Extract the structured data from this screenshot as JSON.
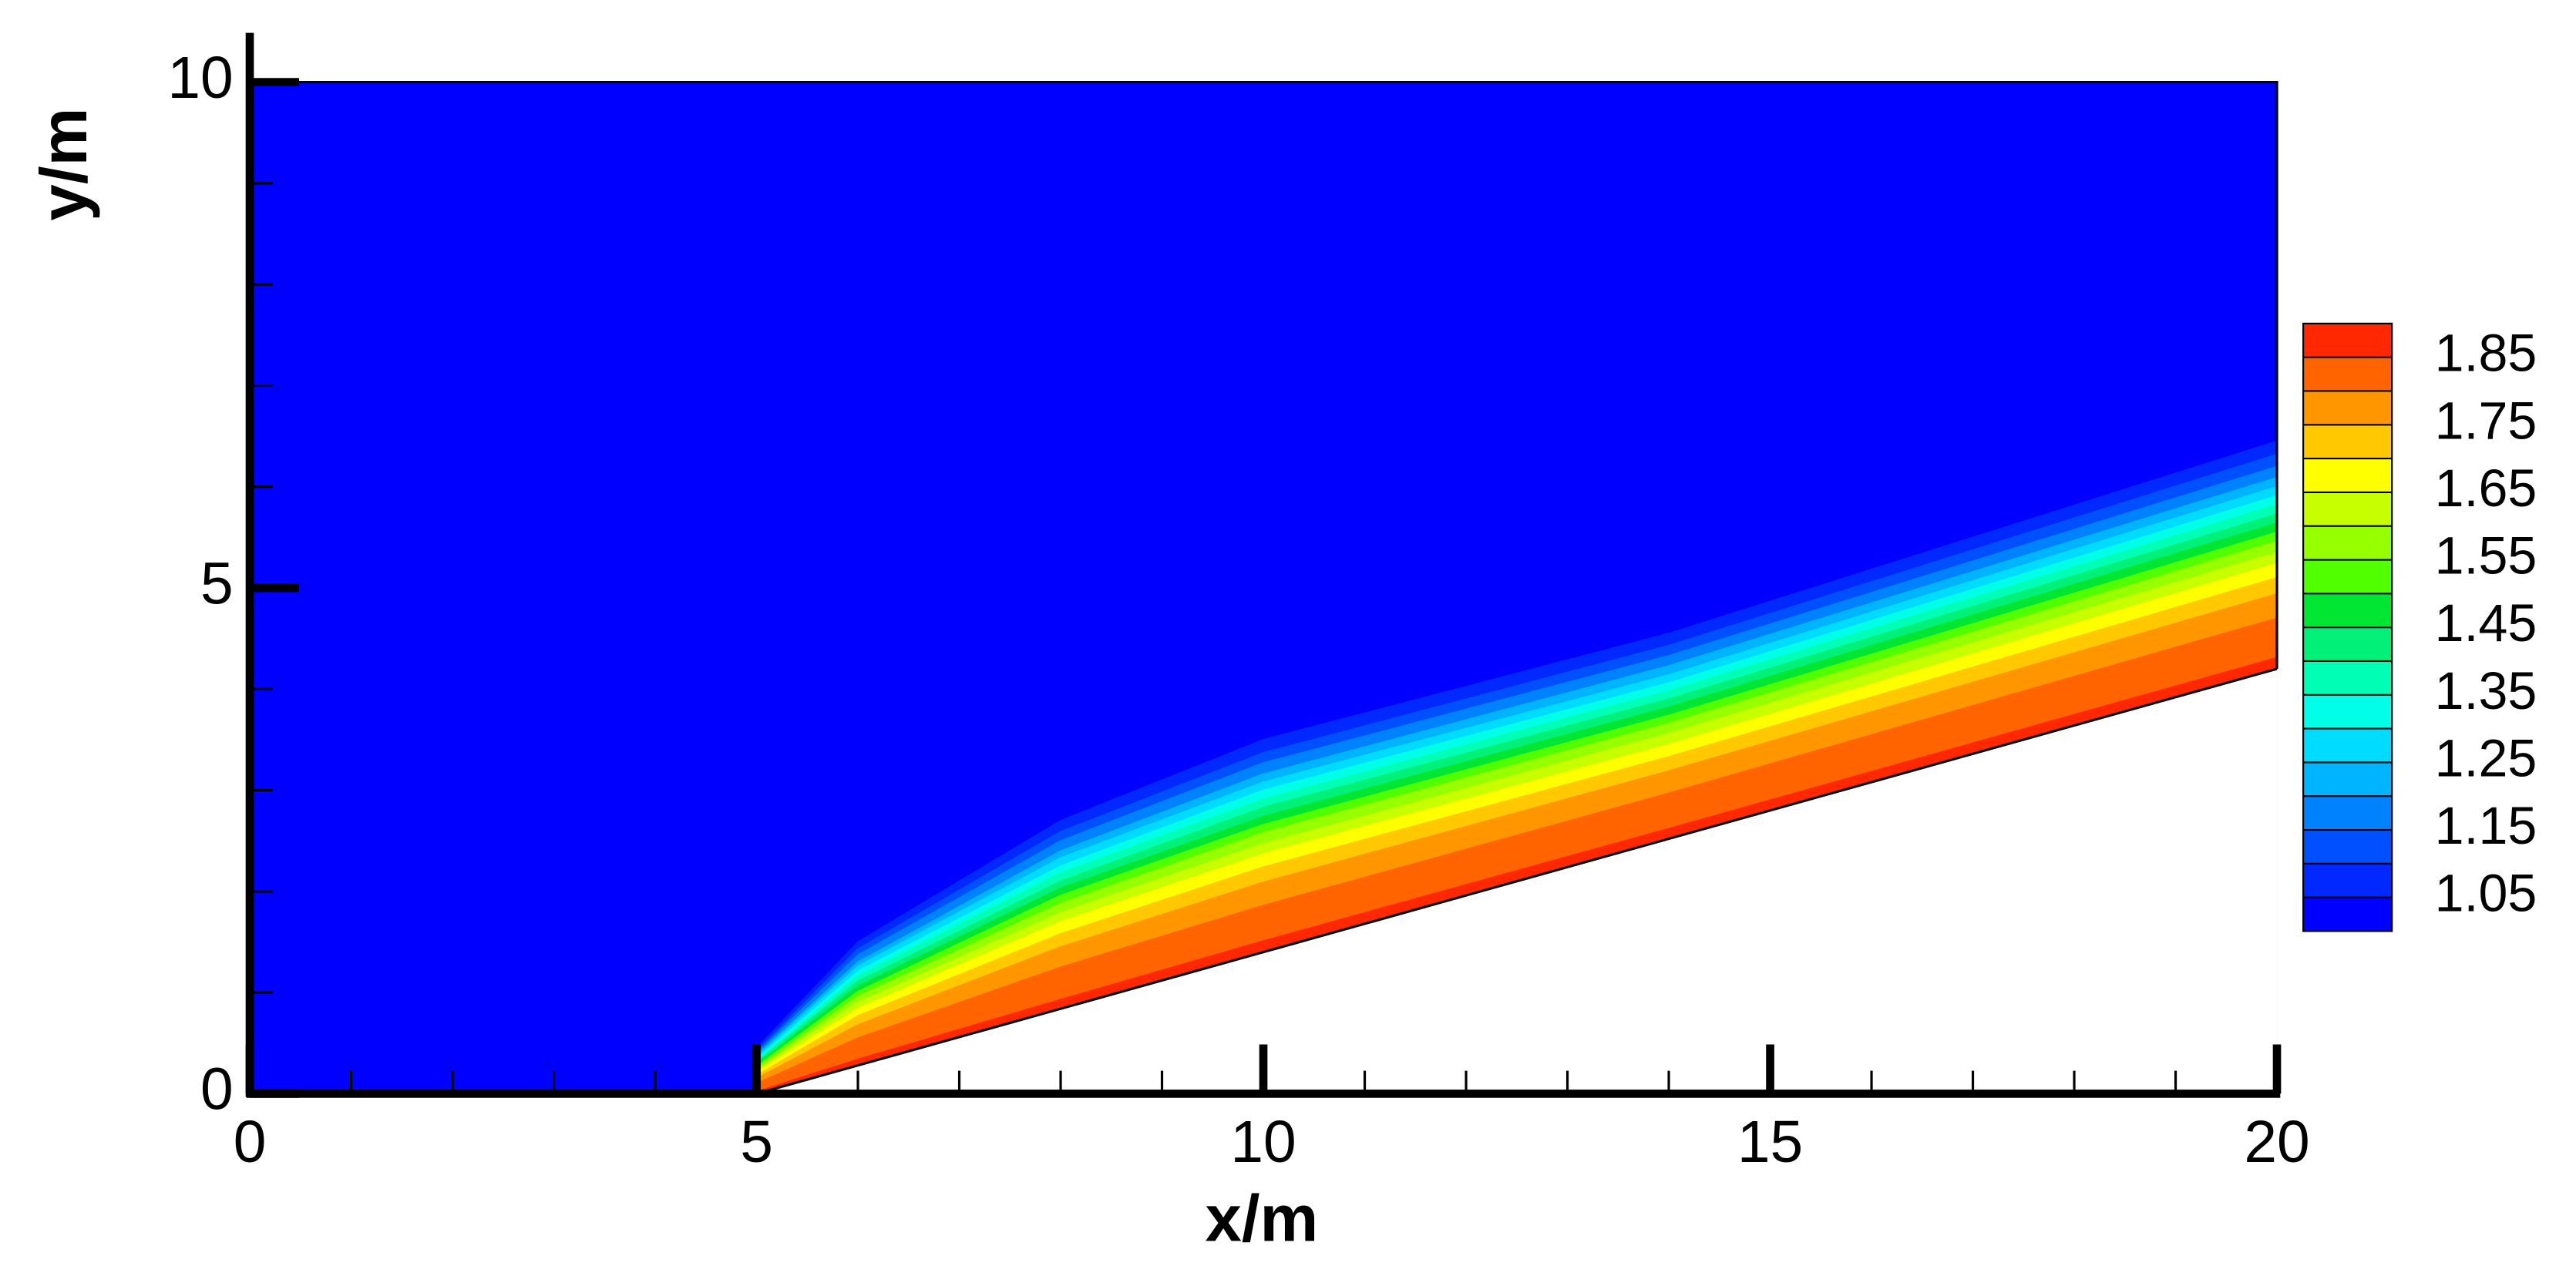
{
  "chart_data": {
    "type": "contour",
    "x_label": "x/m",
    "y_label": "y/m",
    "xlim": [
      0,
      20
    ],
    "ylim": [
      0,
      10
    ],
    "xticks": [
      0,
      5,
      10,
      15,
      20
    ],
    "yticks": [
      0,
      5,
      10
    ],
    "x_minor_step": 1,
    "y_minor_step": 1,
    "background_color": "#0000ff",
    "wedge": {
      "x": [
        5,
        20
      ],
      "y": [
        0,
        4.2
      ]
    },
    "isoline_x": [
      5,
      6,
      8,
      10,
      14,
      20
    ],
    "isolines": [
      {
        "level": 1.05,
        "y": [
          0.45,
          1.5,
          2.7,
          3.5,
          4.55,
          6.45
        ]
      },
      {
        "level": 1.1,
        "y": [
          0.42,
          1.43,
          2.59,
          3.37,
          4.43,
          6.32
        ]
      },
      {
        "level": 1.15,
        "y": [
          0.4,
          1.37,
          2.5,
          3.27,
          4.33,
          6.2
        ]
      },
      {
        "level": 1.2,
        "y": [
          0.38,
          1.3,
          2.4,
          3.16,
          4.23,
          6.09
        ]
      },
      {
        "level": 1.25,
        "y": [
          0.36,
          1.26,
          2.33,
          3.08,
          4.14,
          6.0
        ]
      },
      {
        "level": 1.3,
        "y": [
          0.34,
          1.21,
          2.25,
          3.0,
          4.06,
          5.91
        ]
      },
      {
        "level": 1.35,
        "y": [
          0.32,
          1.16,
          2.18,
          2.91,
          3.98,
          5.82
        ]
      },
      {
        "level": 1.4,
        "y": [
          0.31,
          1.11,
          2.1,
          2.83,
          3.9,
          5.73
        ]
      },
      {
        "level": 1.45,
        "y": [
          0.29,
          1.06,
          2.03,
          2.74,
          3.82,
          5.64
        ]
      },
      {
        "level": 1.5,
        "y": [
          0.27,
          1.01,
          1.96,
          2.66,
          3.74,
          5.55
        ]
      },
      {
        "level": 1.55,
        "y": [
          0.25,
          0.96,
          1.88,
          2.58,
          3.66,
          5.46
        ]
      },
      {
        "level": 1.6,
        "y": [
          0.23,
          0.9,
          1.79,
          2.47,
          3.56,
          5.35
        ]
      },
      {
        "level": 1.65,
        "y": [
          0.21,
          0.84,
          1.7,
          2.37,
          3.45,
          5.24
        ]
      },
      {
        "level": 1.7,
        "y": [
          0.18,
          0.77,
          1.58,
          2.24,
          3.33,
          5.1
        ]
      },
      {
        "level": 1.75,
        "y": [
          0.15,
          0.68,
          1.45,
          2.09,
          3.19,
          4.94
        ]
      },
      {
        "level": 1.8,
        "y": [
          0.1,
          0.55,
          1.25,
          1.86,
          2.97,
          4.7
        ]
      },
      {
        "level": 1.85,
        "y": [
          0.02,
          0.34,
          0.93,
          1.51,
          2.62,
          4.31
        ]
      }
    ],
    "band_colors": [
      "#0000ff",
      "#0028ff",
      "#0050ff",
      "#0082ff",
      "#00b4ff",
      "#00dcff",
      "#00ffe6",
      "#00ffb4",
      "#00f078",
      "#00e632",
      "#50ff00",
      "#96ff00",
      "#c8ff00",
      "#ffff00",
      "#ffc800",
      "#ff9600",
      "#ff6400",
      "#ff2800"
    ],
    "colorbar_lim": [
      1.0,
      1.9
    ],
    "colorbar_ticks": [
      1.05,
      1.15,
      1.25,
      1.35,
      1.45,
      1.55,
      1.65,
      1.75,
      1.85
    ]
  }
}
